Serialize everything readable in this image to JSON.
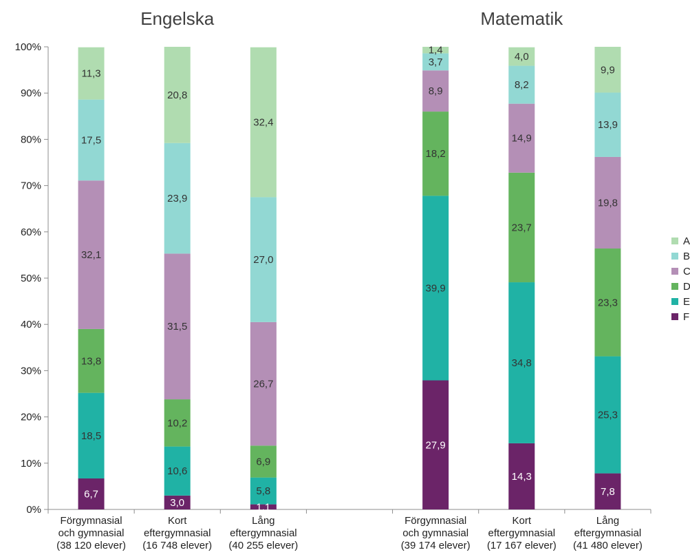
{
  "chart_data": {
    "type": "bar",
    "stacked": true,
    "ylim": [
      0,
      100
    ],
    "y_ticks": [
      "0%",
      "10%",
      "20%",
      "30%",
      "40%",
      "50%",
      "60%",
      "70%",
      "80%",
      "90%",
      "100%"
    ],
    "groups": [
      {
        "title": "Engelska",
        "categories": [
          [
            "Förgymnasial",
            "och gymnasial",
            "(38 120 elever)"
          ],
          [
            "Kort",
            "eftergymnasial",
            "(16 748 elever)"
          ],
          [
            "Lång",
            "eftergymnasial",
            "(40 255 elever)"
          ]
        ]
      },
      {
        "title": "Matematik",
        "categories": [
          [
            "Förgymnasial",
            "och gymnasial",
            "(39 174 elever)"
          ],
          [
            "Kort",
            "eftergymnasial",
            "(17 167 elever)"
          ],
          [
            "Lång",
            "eftergymnasial",
            "(41 480 elever)"
          ]
        ]
      }
    ],
    "series": [
      {
        "name": "F",
        "color": "#6b2468",
        "label_color": "#ffffff",
        "values": [
          6.7,
          3.0,
          1.1,
          27.9,
          14.3,
          7.8
        ],
        "labels": [
          "6,7",
          "3,0",
          "1,1",
          "27,9",
          "14,3",
          "7,8"
        ]
      },
      {
        "name": "E",
        "color": "#20b2a5",
        "label_color": "#333333",
        "values": [
          18.5,
          10.6,
          5.8,
          39.9,
          34.8,
          25.3
        ],
        "labels": [
          "18,5",
          "10,6",
          "5,8",
          "39,9",
          "34,8",
          "25,3"
        ]
      },
      {
        "name": "D",
        "color": "#64b45e",
        "label_color": "#333333",
        "values": [
          13.8,
          10.2,
          6.9,
          18.2,
          23.7,
          23.3
        ],
        "labels": [
          "13,8",
          "10,2",
          "6,9",
          "18,2",
          "23,7",
          "23,3"
        ]
      },
      {
        "name": "C",
        "color": "#b48fb6",
        "label_color": "#333333",
        "values": [
          32.1,
          31.5,
          26.7,
          8.9,
          14.9,
          19.8
        ],
        "labels": [
          "32,1",
          "31,5",
          "26,7",
          "8,9",
          "14,9",
          "19,8"
        ]
      },
      {
        "name": "B",
        "color": "#92d8d3",
        "label_color": "#333333",
        "values": [
          17.5,
          23.9,
          27.0,
          3.7,
          8.2,
          13.9
        ],
        "labels": [
          "17,5",
          "23,9",
          "27,0",
          "3,7",
          "8,2",
          "13,9"
        ]
      },
      {
        "name": "A",
        "color": "#b0dcb0",
        "label_color": "#333333",
        "values": [
          11.3,
          20.8,
          32.4,
          1.4,
          4.0,
          9.9
        ],
        "labels": [
          "11,3",
          "20,8",
          "32,4",
          "1,4",
          "4,0",
          "9,9"
        ]
      }
    ],
    "legend": {
      "position": "right",
      "order": [
        "A",
        "B",
        "C",
        "D",
        "E",
        "F"
      ]
    },
    "grid": false
  }
}
